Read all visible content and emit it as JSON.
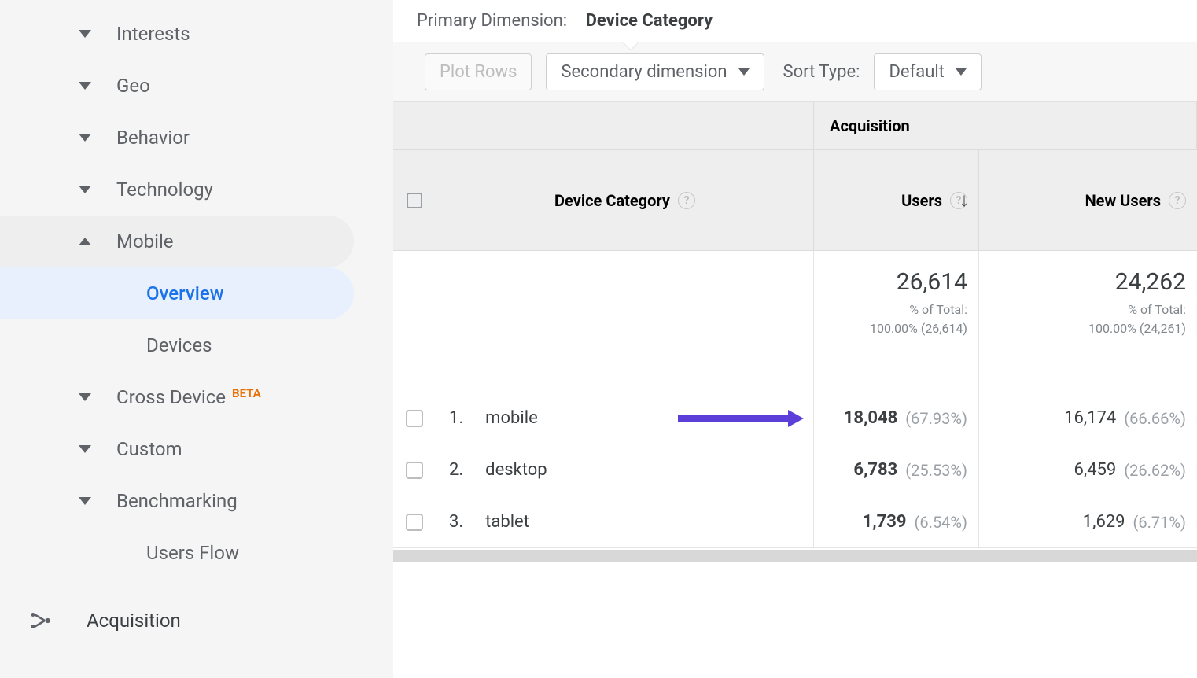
{
  "sidebar": {
    "items": [
      {
        "label": "Interests",
        "state": "collapsed"
      },
      {
        "label": "Geo",
        "state": "collapsed"
      },
      {
        "label": "Behavior",
        "state": "collapsed"
      },
      {
        "label": "Technology",
        "state": "collapsed"
      },
      {
        "label": "Mobile",
        "state": "expanded",
        "children": [
          {
            "label": "Overview",
            "active": true
          },
          {
            "label": "Devices",
            "active": false
          }
        ]
      },
      {
        "label": "Cross Device",
        "badge": "BETA",
        "state": "collapsed"
      },
      {
        "label": "Custom",
        "state": "collapsed"
      },
      {
        "label": "Benchmarking",
        "state": "collapsed"
      },
      {
        "label": "Users Flow",
        "state": "leaf"
      }
    ],
    "section": {
      "label": "Acquisition"
    }
  },
  "primary_dimension": {
    "label": "Primary Dimension:",
    "value": "Device Category"
  },
  "toolbar": {
    "plot_rows": "Plot Rows",
    "secondary_dim": "Secondary dimension",
    "sort_type_label": "Sort Type:",
    "sort_type_value": "Default"
  },
  "table": {
    "dimension_header": "Device Category",
    "group_header": "Acquisition",
    "metrics": [
      {
        "name": "Users",
        "sorted": true
      },
      {
        "name": "New Users",
        "sorted": false
      }
    ],
    "totals": [
      {
        "value": "26,614",
        "sub1": "% of Total:",
        "sub2": "100.00% (26,614)"
      },
      {
        "value": "24,262",
        "sub1": "% of Total:",
        "sub2": "100.00% (24,261)"
      }
    ],
    "rows": [
      {
        "idx": "1.",
        "name": "mobile",
        "highlight": true,
        "metrics": [
          {
            "v": "18,048",
            "pct": "(67.93%)"
          },
          {
            "v": "16,174",
            "pct": "(66.66%)"
          }
        ]
      },
      {
        "idx": "2.",
        "name": "desktop",
        "highlight": false,
        "metrics": [
          {
            "v": "6,783",
            "pct": "(25.53%)"
          },
          {
            "v": "6,459",
            "pct": "(26.62%)"
          }
        ]
      },
      {
        "idx": "3.",
        "name": "tablet",
        "highlight": false,
        "metrics": [
          {
            "v": "1,739",
            "pct": "(6.54%)"
          },
          {
            "v": "1,629",
            "pct": "(6.71%)"
          }
        ]
      }
    ]
  },
  "colors": {
    "sidebar_bg": "#f5f5f5",
    "active_bg": "#e8f0fe",
    "active_text": "#1a73e8",
    "beta": "#e8710a",
    "arrow": "#5b3fd8",
    "text": "#3c4043",
    "muted": "#9aa0a6",
    "border": "#e0e0e0"
  }
}
